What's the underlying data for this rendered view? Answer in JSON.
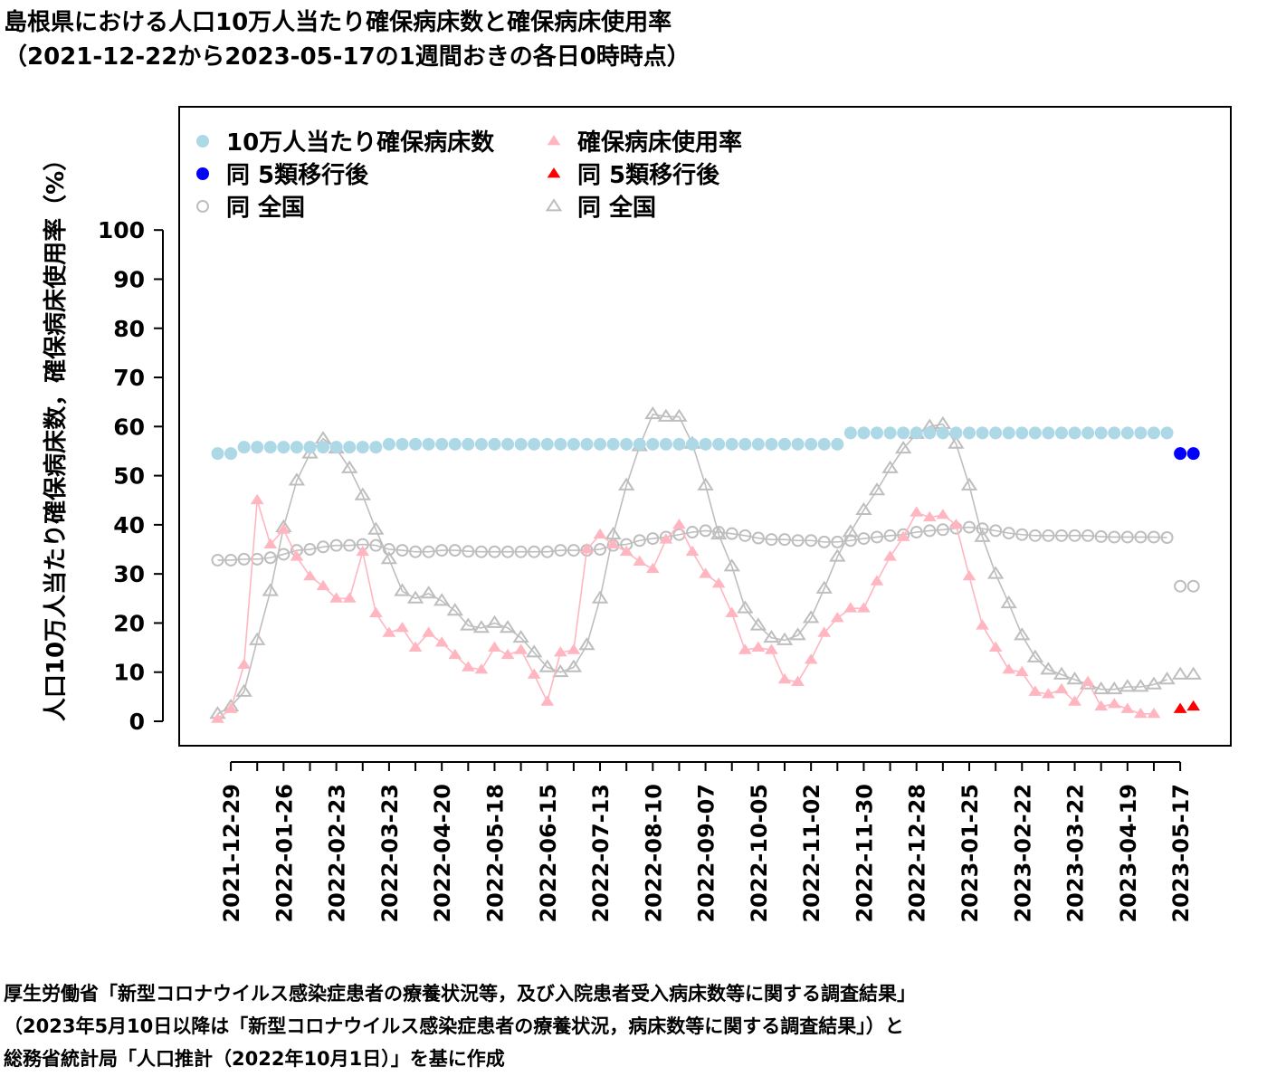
{
  "title": {
    "line1": "島根県における人口10万人当たり確保病床数と確保病床使用率",
    "line2": "（2021-12-22から2023-05-17の1週間おきの各日0時時点）"
  },
  "footer": {
    "line1": "厚生労働省「新型コロナウイルス感染症患者の療養状況等，及び入院患者受入病床数等に関する調査結果」",
    "line2": "（2023年5月10日以降は「新型コロナウイルス感染症患者の療養状況，病床数等に関する調査結果」）と",
    "line3": "総務省統計局「人口推計（2022年10月1日）」を基に作成"
  },
  "chart_data": {
    "type": "scatter",
    "ylabel": "人口10万人当たり確保病床数，確保病床使用率（%）",
    "ylim": [
      0,
      100
    ],
    "yticks": [
      0,
      10,
      20,
      30,
      40,
      50,
      60,
      70,
      80,
      90,
      100
    ],
    "x_start": "2021-12-22",
    "x_end": "2023-05-17",
    "x_interval": "1 week",
    "xticks": [
      "2021-12-29",
      "2022-01-26",
      "2022-02-23",
      "2022-03-23",
      "2022-04-20",
      "2022-05-18",
      "2022-06-15",
      "2022-07-13",
      "2022-08-10",
      "2022-09-07",
      "2022-10-05",
      "2022-11-02",
      "2022-11-30",
      "2022-12-28",
      "2023-01-25",
      "2023-02-22",
      "2023-03-22",
      "2023-04-19",
      "2023-05-17"
    ],
    "legend": {
      "placement": "top-left",
      "entries": [
        {
          "label": "10万人当たり確保病床数",
          "marker": "circle",
          "color": "#add8e6"
        },
        {
          "label": "確保病床使用率",
          "marker": "triangle",
          "color": "#ffb6c1"
        },
        {
          "label": "同 5類移行後",
          "marker": "circle",
          "color": "#0000ff"
        },
        {
          "label": "同 5類移行後",
          "marker": "triangle",
          "color": "#ff0000"
        },
        {
          "label": "同 全国",
          "marker": "open-circle",
          "color": "#bebebe"
        },
        {
          "label": "同 全国",
          "marker": "open-triangle",
          "color": "#bebebe"
        }
      ]
    },
    "series": [
      {
        "name": "10万人当たり確保病床数",
        "marker": "circle",
        "color": "#add8e6",
        "line": false,
        "values": [
          54.5,
          54.5,
          55.8,
          55.8,
          55.8,
          55.8,
          55.8,
          55.8,
          55.8,
          55.8,
          55.8,
          55.8,
          55.8,
          56.4,
          56.4,
          56.4,
          56.4,
          56.4,
          56.4,
          56.4,
          56.4,
          56.4,
          56.4,
          56.4,
          56.4,
          56.4,
          56.4,
          56.4,
          56.4,
          56.4,
          56.4,
          56.4,
          56.4,
          56.4,
          56.4,
          56.4,
          56.4,
          56.4,
          56.4,
          56.4,
          56.4,
          56.4,
          56.4,
          56.4,
          56.4,
          56.4,
          56.4,
          56.4,
          58.7,
          58.7,
          58.7,
          58.7,
          58.7,
          58.7,
          58.7,
          58.7,
          58.7,
          58.7,
          58.7,
          58.7,
          58.7,
          58.7,
          58.7,
          58.7,
          58.7,
          58.7,
          58.7,
          58.7,
          58.7,
          58.7,
          58.7,
          58.7,
          58.7
        ]
      },
      {
        "name": "確保病床使用率",
        "marker": "triangle",
        "color": "#ffb6c1",
        "line": true,
        "values": [
          0.5,
          2.5,
          11.5,
          45,
          36,
          39,
          33.5,
          29.5,
          27.5,
          25,
          25,
          34.5,
          22,
          18,
          19,
          15,
          18,
          16,
          13.5,
          11,
          10.5,
          15,
          13.5,
          14.5,
          9.5,
          4,
          14,
          14.5,
          35,
          38,
          36,
          34.5,
          32.5,
          31,
          37,
          40,
          34.5,
          30,
          28,
          22,
          14.5,
          15,
          14.5,
          8.5,
          8,
          12.5,
          18,
          21,
          23,
          23,
          28.5,
          33.5,
          37.5,
          42.5,
          41.5,
          42,
          40,
          29.5,
          19.5,
          15,
          10.5,
          10,
          6,
          5.5,
          6.5,
          4,
          8,
          3,
          3.5,
          2.5,
          1.5,
          1.5
        ]
      },
      {
        "name": "同 5類移行後",
        "marker": "circle",
        "color": "#0000ff",
        "line": false,
        "x_index": [
          73,
          74
        ],
        "values": [
          54.5,
          54.5
        ]
      },
      {
        "name": "同 5類移行後",
        "marker": "triangle",
        "color": "#ff0000",
        "line": false,
        "x_index": [
          73,
          74
        ],
        "values": [
          2.5,
          3
        ]
      },
      {
        "name": "同 全国",
        "marker": "open-circle",
        "color": "#bebebe",
        "line": true,
        "values": [
          32.8,
          32.8,
          33.0,
          33.0,
          33.3,
          34.0,
          34.8,
          35.0,
          35.5,
          35.8,
          35.8,
          36.0,
          35.8,
          35.0,
          34.8,
          34.5,
          34.5,
          34.8,
          34.8,
          34.6,
          34.5,
          34.5,
          34.5,
          34.5,
          34.5,
          34.5,
          34.8,
          34.8,
          34.8,
          35.0,
          35.8,
          36.0,
          36.8,
          37.2,
          37.5,
          38.0,
          38.5,
          38.8,
          38.5,
          38.2,
          37.8,
          37.3,
          37.0,
          37.0,
          36.8,
          36.8,
          36.5,
          36.5,
          36.8,
          37.2,
          37.5,
          37.8,
          38.0,
          38.5,
          38.8,
          39.0,
          39.3,
          39.5,
          39.2,
          38.8,
          38.3,
          38.0,
          37.8,
          37.8,
          37.8,
          37.8,
          37.8,
          37.6,
          37.5,
          37.5,
          37.5,
          37.5,
          37.4
        ]
      },
      {
        "name": "同 全国",
        "marker": "open-triangle",
        "color": "#bebebe",
        "line": true,
        "values": [
          1.5,
          3,
          6,
          16.5,
          26.5,
          39.5,
          49,
          54.5,
          57.5,
          55.5,
          51.5,
          46,
          39,
          33,
          26.5,
          25,
          26,
          24.5,
          22.5,
          19.5,
          19,
          20,
          19,
          17,
          14,
          11,
          10,
          11,
          15.5,
          25,
          38,
          48,
          56,
          62.5,
          62,
          62,
          56.5,
          48,
          38,
          31.5,
          23,
          19.5,
          17,
          16.5,
          17.5,
          21,
          27,
          33.5,
          38.5,
          43,
          47,
          51.5,
          55.5,
          58.5,
          60,
          60.5,
          56.5,
          48,
          37.5,
          30,
          24,
          17.5,
          13,
          10.5,
          9.5,
          8.5,
          7.5,
          6.5,
          6.5,
          7,
          7,
          7.5,
          8.5
        ]
      },
      {
        "name": "同 全国",
        "marker": "open-circle",
        "color": "#bebebe",
        "line": false,
        "x_index": [
          73,
          74
        ],
        "values": [
          27.5,
          27.5
        ]
      },
      {
        "name": "同 全国",
        "marker": "open-triangle",
        "color": "#bebebe",
        "line": false,
        "x_index": [
          73,
          74
        ],
        "values": [
          9.5,
          9.5
        ]
      }
    ]
  }
}
